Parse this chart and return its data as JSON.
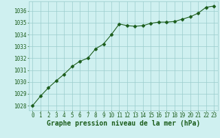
{
  "x": [
    0,
    1,
    2,
    3,
    4,
    5,
    6,
    7,
    8,
    9,
    10,
    11,
    12,
    13,
    14,
    15,
    16,
    17,
    18,
    19,
    20,
    21,
    22,
    23
  ],
  "y": [
    1028.0,
    1028.8,
    1029.5,
    1030.1,
    1030.65,
    1031.3,
    1031.75,
    1032.0,
    1032.8,
    1033.2,
    1034.0,
    1034.9,
    1034.75,
    1034.7,
    1034.75,
    1034.95,
    1035.05,
    1035.05,
    1035.1,
    1035.3,
    1035.5,
    1035.8,
    1036.3,
    1036.4
  ],
  "line_color": "#1a5c1a",
  "marker": "D",
  "markersize": 2.5,
  "linewidth": 0.8,
  "bg_color": "#cff0f0",
  "plot_bg_color": "#cff0f0",
  "grid_color": "#99cccc",
  "xlabel": "Graphe pression niveau de la mer (hPa)",
  "xlabel_color": "#1a5c1a",
  "xlabel_fontsize": 7,
  "tick_color": "#1a5c1a",
  "tick_fontsize": 5.5,
  "ylim": [
    1027.6,
    1036.8
  ],
  "xlim": [
    -0.5,
    23.5
  ],
  "yticks": [
    1028,
    1029,
    1030,
    1031,
    1032,
    1033,
    1034,
    1035,
    1036
  ],
  "xticks": [
    0,
    1,
    2,
    3,
    4,
    5,
    6,
    7,
    8,
    9,
    10,
    11,
    12,
    13,
    14,
    15,
    16,
    17,
    18,
    19,
    20,
    21,
    22,
    23
  ]
}
